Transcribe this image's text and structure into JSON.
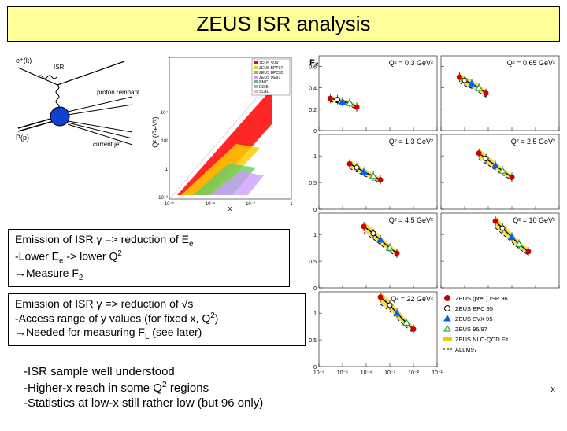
{
  "title": "ZEUS ISR analysis",
  "feynman": {
    "labels": {
      "electron_in": "e⁺(k)",
      "isr": "ISR",
      "proton": "P(p)",
      "remnant": "proton remnant",
      "jet": "current jet"
    },
    "colors": {
      "proton": "#1040d0",
      "photon": "#000000",
      "line": "#000000"
    }
  },
  "kinematic_plane": {
    "xlabel": "x",
    "ylabel": "Q² (GeV²)",
    "x_log": true,
    "y_log": true,
    "xlim": [
      1e-06,
      1
    ],
    "ylim": [
      0.01,
      100000.0
    ],
    "legend": [
      "ZEUS SVX",
      "ZEUS BPT 97",
      "ZEUS BPC 95",
      "ZEUS 96/97",
      "NMC",
      "E665",
      "SLAC"
    ],
    "region_colors": [
      "#ff0000",
      "#ffcc00",
      "#66cc66",
      "#cc99ff",
      "#999999",
      "#66ccee",
      "#ffaacc"
    ]
  },
  "textbox1": {
    "l1a": "Emission of ISR γ => reduction of E",
    "l1sub": "e",
    "l2a": "-Lower E",
    "l2sub": "e",
    "l2b": " -> lower Q",
    "l2sup": "2",
    "l3a": "→Measure F",
    "l3sub": "2"
  },
  "textbox2": {
    "l1": "Emission of ISR γ => reduction of √s",
    "l2a": "-Access range of y values (for fixed x, Q",
    "l2sup": "2",
    "l2b": ")",
    "l3a": "→Needed for measuring F",
    "l3sub": "L",
    "l3b": "   (see later)"
  },
  "textbox3": {
    "l1": "-ISR sample well understood",
    "l2a": "-Higher-x reach in some Q",
    "l2sup": "2",
    "l2b": " regions",
    "l3": "-Statistics at low-x still rather low  (but 96 only)"
  },
  "f2_panels": {
    "xlabel": "x",
    "ylabel": "F₂",
    "x_log": true,
    "xlim": [
      1e-06,
      0.1
    ],
    "panels": [
      {
        "Q2": 0.3,
        "ylim": [
          0,
          0.7
        ],
        "ytick": 0.2
      },
      {
        "Q2": 0.65,
        "ylim": [
          0,
          0.7
        ],
        "ytick": 0.2
      },
      {
        "Q2": 1.3,
        "ylim": [
          0,
          1.4
        ],
        "ytick": 0.5
      },
      {
        "Q2": 2.5,
        "ylim": [
          0,
          1.4
        ],
        "ytick": 0.5
      },
      {
        "Q2": 4.5,
        "ylim": [
          0,
          1.4
        ],
        "ytick": 0.5
      },
      {
        "Q2": 10,
        "ylim": [
          0,
          1.4
        ],
        "ytick": 0.5
      },
      {
        "Q2": 22,
        "ylim": [
          0,
          1.4
        ],
        "ytick": 0.5
      }
    ],
    "series_styles": {
      "zeus_prel": {
        "color": "#cc0000",
        "marker": "circle_filled"
      },
      "zeus_bpc": {
        "color": "#000000",
        "marker": "circle_open"
      },
      "zeus_svx": {
        "color": "#0060ff",
        "marker": "triangle_filled"
      },
      "zeus_9697": {
        "color": "#009933",
        "marker": "triangle_open"
      },
      "nlo_qcd": {
        "color": "#eecc00",
        "style": "band"
      },
      "allm97": {
        "color": "#000000",
        "style": "dash"
      }
    },
    "legend": [
      "ZEUS (prel.) ISR 96",
      "ZEUS BPC 95",
      "ZEUS SVX 95",
      "ZEUS 96/97",
      "ZEUS NLO-QCD Fit",
      "ALLM97"
    ],
    "sample_points": {
      "0.3": {
        "x": [
          3e-06,
          6e-06,
          1e-05,
          2e-05,
          4e-05
        ],
        "y": [
          0.3,
          0.29,
          0.27,
          0.26,
          0.22
        ]
      },
      "0.65": {
        "x": [
          6e-06,
          1e-05,
          2e-05,
          4e-05,
          8e-05
        ],
        "y": [
          0.5,
          0.47,
          0.44,
          0.4,
          0.35
        ]
      },
      "1.3": {
        "x": [
          2e-05,
          4e-05,
          8e-05,
          0.0002,
          0.0004
        ],
        "y": [
          0.85,
          0.78,
          0.7,
          0.62,
          0.55
        ]
      },
      "2.5": {
        "x": [
          4e-05,
          8e-05,
          0.0002,
          0.0004,
          0.001
        ],
        "y": [
          1.05,
          0.95,
          0.82,
          0.72,
          0.6
        ]
      },
      "4.5": {
        "x": [
          8e-05,
          0.0002,
          0.0004,
          0.001,
          0.002
        ],
        "y": [
          1.15,
          1.02,
          0.9,
          0.75,
          0.65
        ]
      },
      "10": {
        "x": [
          0.0002,
          0.0004,
          0.001,
          0.002,
          0.005
        ],
        "y": [
          1.25,
          1.12,
          0.95,
          0.82,
          0.68
        ]
      },
      "22": {
        "x": [
          0.0004,
          0.001,
          0.002,
          0.005,
          0.01
        ],
        "y": [
          1.3,
          1.15,
          1.0,
          0.82,
          0.7
        ]
      }
    }
  }
}
